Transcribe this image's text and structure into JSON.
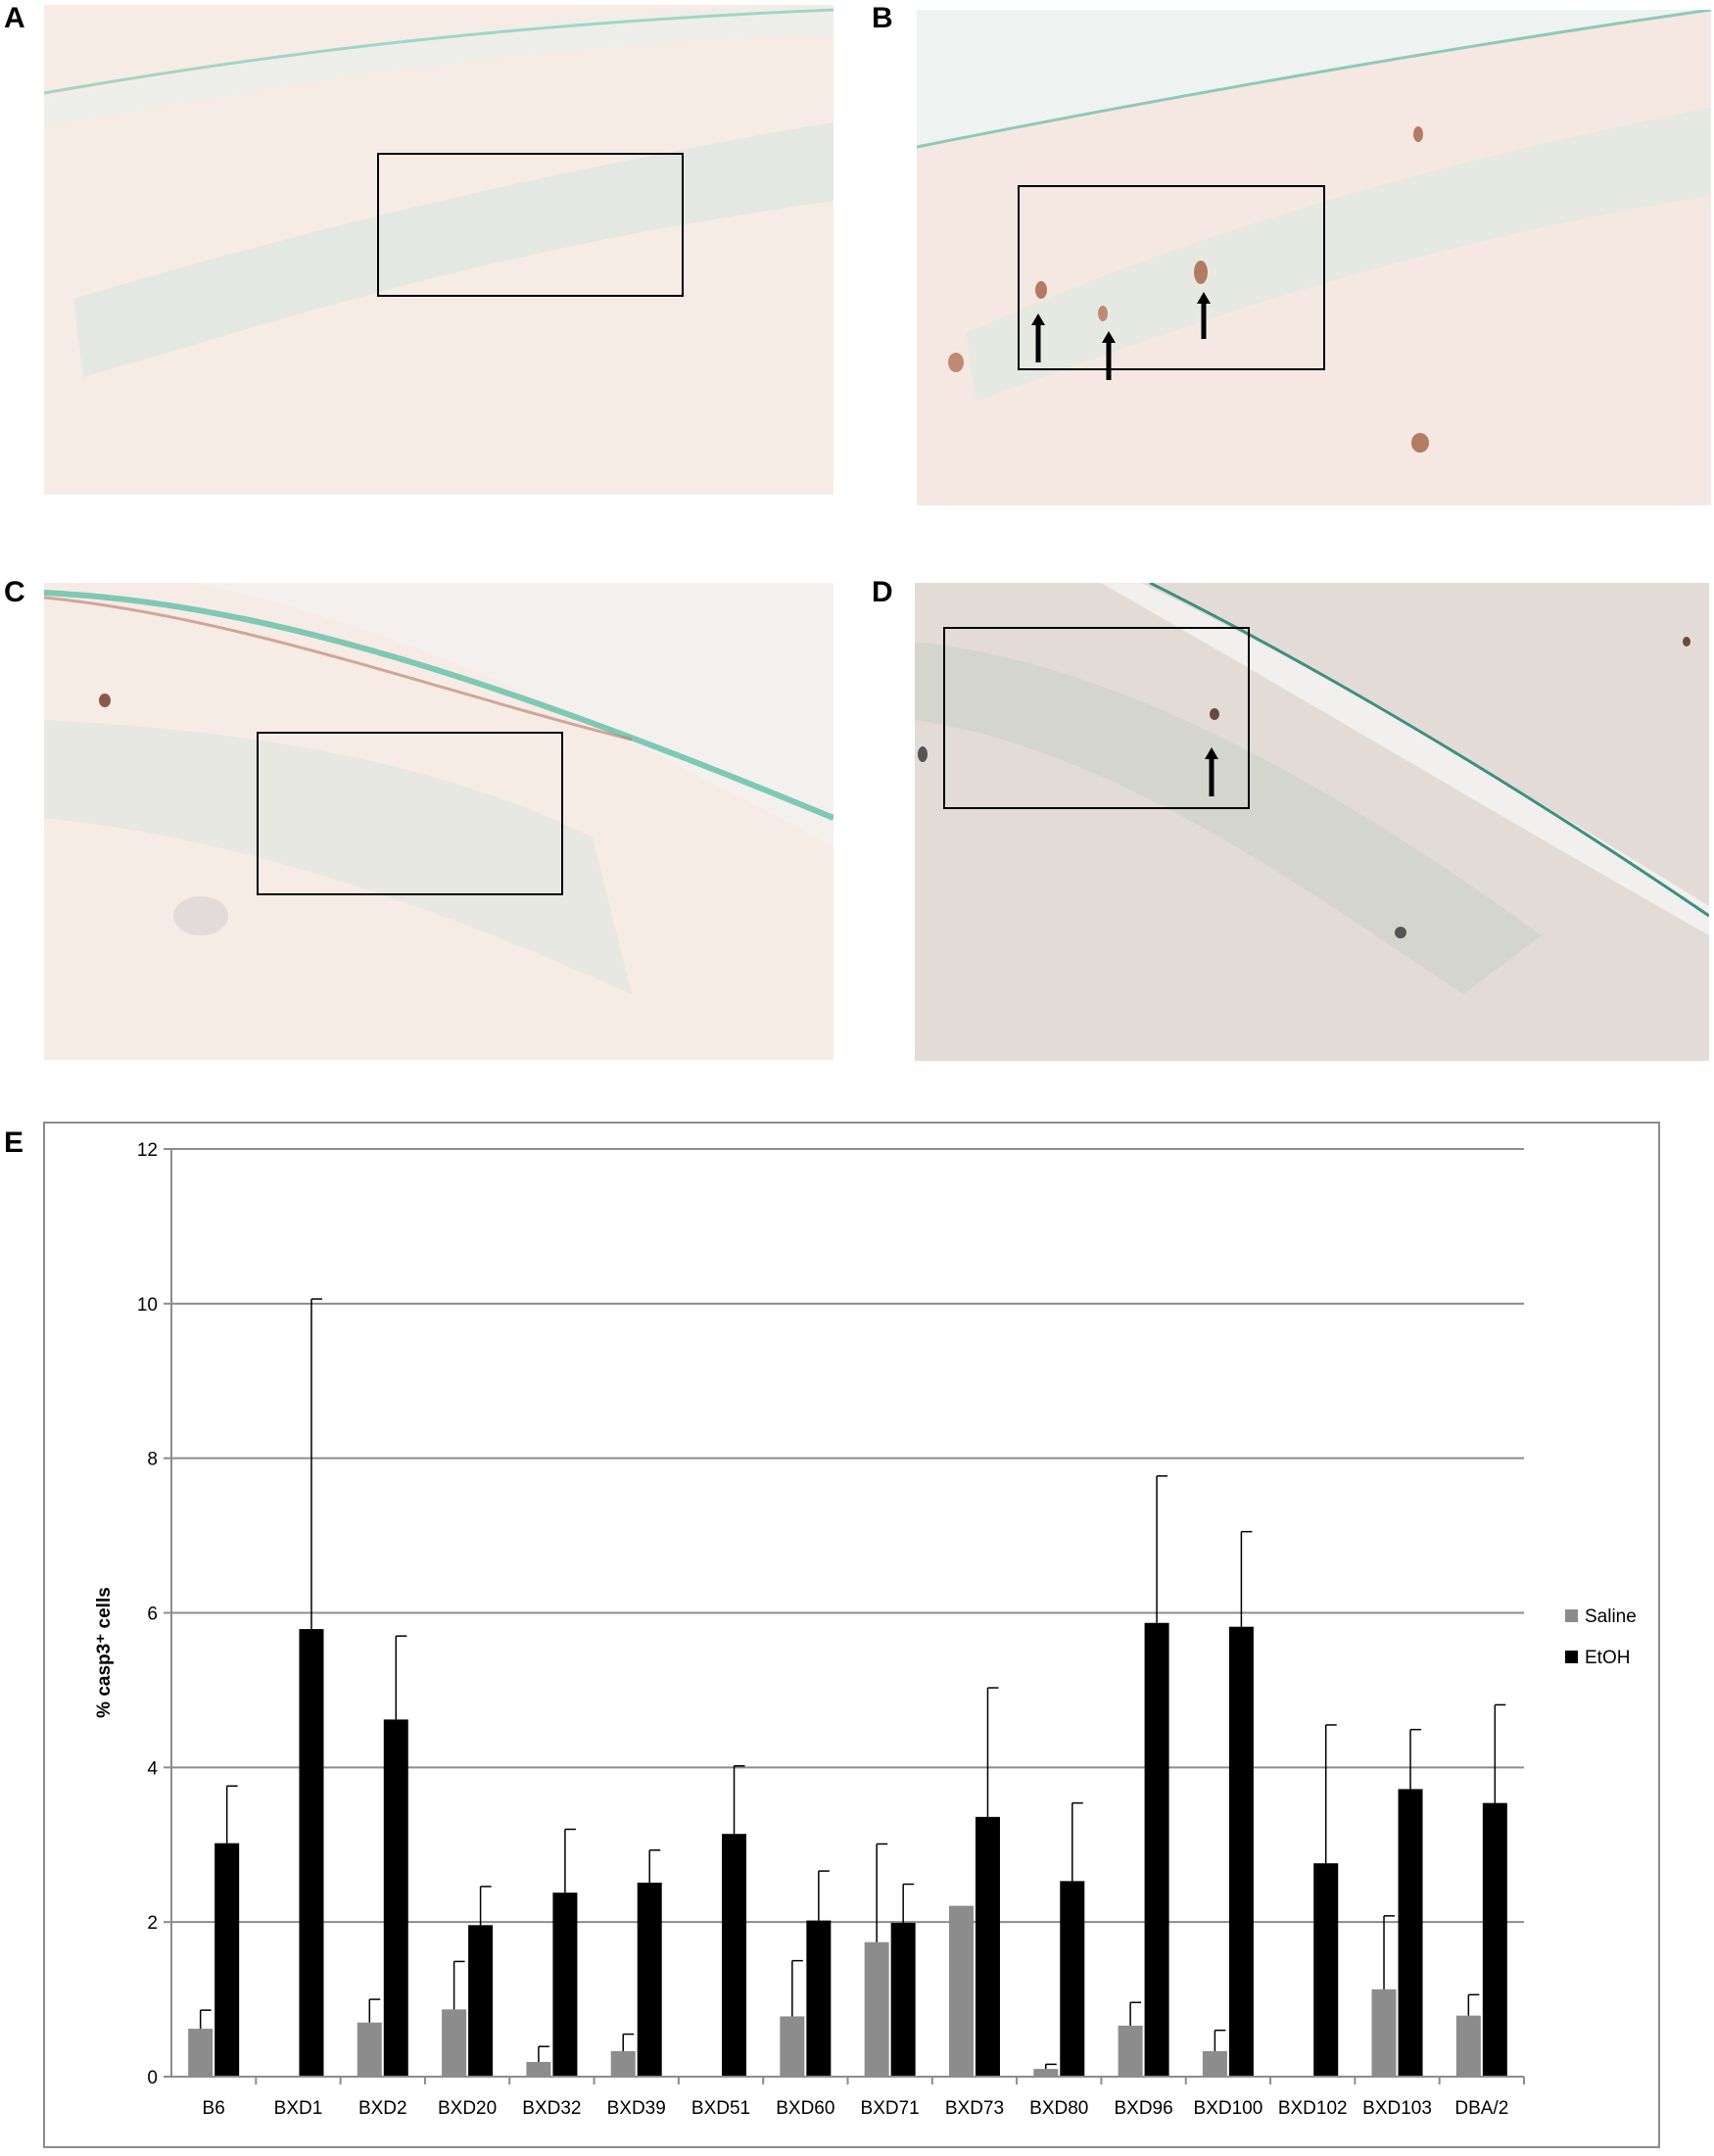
{
  "panels": [
    {
      "letter": "A",
      "arrows": 0
    },
    {
      "letter": "B",
      "arrows": 3
    },
    {
      "letter": "C",
      "arrows": 0
    },
    {
      "letter": "D",
      "arrows": 1
    }
  ],
  "chart_panel_letter": "E",
  "colors": {
    "saline": "#8c8c8c",
    "etoh": "#000000",
    "tissue_light": "#f7ebe6",
    "tissue_dark": "#e3dcd6",
    "stain_green": "#5fbfa8",
    "stain_brown": "#b47a62"
  },
  "chart_data": {
    "type": "bar",
    "ylabel": "% casp3⁺ cells",
    "ylim": [
      0,
      12
    ],
    "yticks": [
      0,
      2,
      4,
      6,
      8,
      10,
      12
    ],
    "grid": true,
    "legend_position": "right",
    "categories": [
      "B6",
      "BXD1",
      "BXD2",
      "BXD20",
      "BXD32",
      "BXD39",
      "BXD51",
      "BXD60",
      "BXD71",
      "BXD73",
      "BXD80",
      "BXD96",
      "BXD100",
      "BXD102",
      "BXD103",
      "DBA/2"
    ],
    "series": [
      {
        "name": "Saline",
        "values": [
          0.62,
          0,
          0.7,
          0.87,
          0.19,
          0.33,
          0,
          0.78,
          1.74,
          2.21,
          0.1,
          0.66,
          0.33,
          0,
          1.13,
          0.79
        ],
        "errors": [
          0.24,
          0,
          0.3,
          0.62,
          0.2,
          0.22,
          0,
          0.72,
          1.27,
          0,
          0.06,
          0.3,
          0.27,
          0,
          0.95,
          0.27
        ]
      },
      {
        "name": "EtOH",
        "values": [
          3.02,
          5.79,
          4.62,
          1.96,
          2.38,
          2.51,
          3.14,
          2.02,
          1.99,
          3.36,
          2.53,
          5.87,
          5.82,
          2.76,
          3.72,
          3.54
        ],
        "errors": [
          0.74,
          4.27,
          1.08,
          0.5,
          0.82,
          0.42,
          0.88,
          0.64,
          0.5,
          1.67,
          1.01,
          1.9,
          1.23,
          1.79,
          0.77,
          1.27
        ]
      }
    ]
  }
}
